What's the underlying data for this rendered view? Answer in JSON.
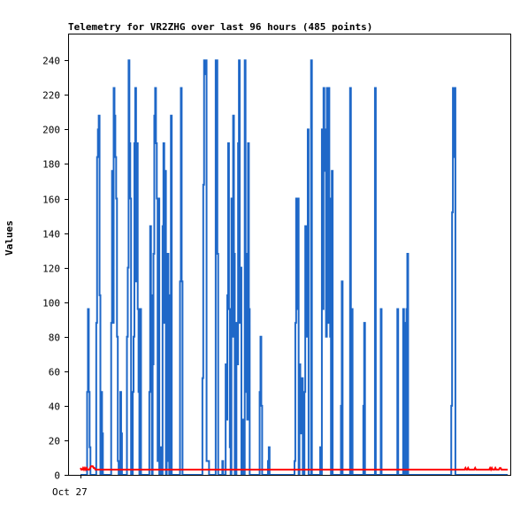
{
  "chart_data": {
    "type": "line",
    "title": "Telemetry for VR2ZHG over last 96 hours (485 points)",
    "ylabel": "Values",
    "xlabel": "",
    "x_tick_labels": [
      "Oct 27"
    ],
    "y_ticks": [
      0,
      20,
      40,
      60,
      80,
      100,
      120,
      140,
      160,
      180,
      200,
      220,
      240
    ],
    "ylim": [
      0,
      255
    ],
    "grid": false,
    "legend": "none",
    "colors": {
      "primary": "#1f68c8",
      "secondary": "#ff0000",
      "axis": "#000000"
    },
    "series": [
      {
        "color": "#1f68c8",
        "style": "step",
        "values": [
          0,
          0,
          0,
          0,
          0,
          0,
          0,
          0,
          48,
          96,
          48,
          16,
          0,
          0,
          0,
          0,
          0,
          0,
          0,
          88,
          184,
          200,
          208,
          104,
          0,
          48,
          24,
          0,
          0,
          0,
          0,
          0,
          0,
          0,
          0,
          0,
          0,
          88,
          176,
          88,
          224,
          208,
          184,
          160,
          80,
          8,
          0,
          0,
          48,
          24,
          0,
          0,
          0,
          0,
          0,
          0,
          80,
          120,
          240,
          192,
          160,
          0,
          0,
          48,
          80,
          192,
          224,
          112,
          192,
          96,
          48,
          0,
          96,
          0,
          0,
          0,
          0,
          0,
          0,
          0,
          0,
          0,
          0,
          48,
          144,
          104,
          0,
          64,
          128,
          208,
          224,
          192,
          160,
          8,
          160,
          0,
          16,
          0,
          0,
          144,
          192,
          88,
          176,
          0,
          8,
          128,
          64,
          0,
          104,
          208,
          0,
          0,
          0,
          0,
          0,
          0,
          0,
          0,
          0,
          0,
          112,
          224,
          112,
          0,
          0,
          0,
          0,
          0,
          0,
          0,
          0,
          0,
          0,
          0,
          0,
          0,
          0,
          0,
          0,
          0,
          0,
          0,
          0,
          0,
          0,
          0,
          0,
          56,
          168,
          240,
          232,
          240,
          8,
          8,
          8,
          0,
          0,
          0,
          0,
          0,
          0,
          0,
          0,
          240,
          240,
          128,
          0,
          0,
          0,
          0,
          0,
          8,
          0,
          0,
          0,
          64,
          32,
          104,
          192,
          96,
          16,
          0,
          160,
          80,
          208,
          128,
          0,
          0,
          88,
          64,
          192,
          240,
          88,
          120,
          0,
          32,
          16,
          0,
          240,
          48,
          128,
          32,
          192,
          96,
          0,
          0,
          0,
          0,
          0,
          0,
          0,
          0,
          0,
          0,
          0,
          0,
          48,
          80,
          40,
          0,
          0,
          0,
          0,
          0,
          0,
          0,
          8,
          16,
          0,
          0,
          0,
          0,
          0,
          0,
          0,
          0,
          0,
          0,
          0,
          0,
          0,
          0,
          0,
          0,
          0,
          0,
          0,
          0,
          0,
          0,
          0,
          0,
          0,
          0,
          0,
          0,
          0,
          0,
          8,
          88,
          160,
          96,
          160,
          0,
          64,
          24,
          32,
          56,
          0,
          0,
          48,
          144,
          128,
          80,
          200,
          0,
          0,
          0,
          240,
          0,
          0,
          0,
          0,
          0,
          0,
          0,
          0,
          0,
          0,
          16,
          0,
          200,
          96,
          224,
          200,
          176,
          80,
          224,
          88,
          224,
          160,
          80,
          0,
          176,
          0,
          0,
          0,
          0,
          0,
          0,
          0,
          0,
          0,
          0,
          40,
          112,
          0,
          0,
          0,
          0,
          0,
          0,
          0,
          0,
          0,
          224,
          0,
          96,
          0,
          0,
          0,
          0,
          0,
          0,
          0,
          0,
          0,
          0,
          0,
          0,
          0,
          40,
          88,
          0,
          0,
          0,
          0,
          0,
          0,
          0,
          0,
          0,
          0,
          0,
          0,
          224,
          0,
          0,
          0,
          0,
          0,
          0,
          96,
          0,
          0,
          0,
          0,
          0,
          0,
          0,
          0,
          0,
          0,
          0,
          0,
          0,
          0,
          0,
          0,
          0,
          0,
          0,
          96,
          0,
          0,
          0,
          0,
          0,
          0,
          96,
          88,
          0,
          0,
          96,
          128,
          0,
          0,
          0,
          0,
          0,
          0,
          0,
          0,
          0,
          0,
          0,
          0,
          0,
          0,
          0,
          0,
          0,
          0,
          0,
          0,
          0,
          0,
          0,
          0,
          0,
          0,
          0,
          0,
          0,
          0,
          0,
          0,
          0,
          0,
          0,
          0,
          0,
          0,
          0,
          0,
          0,
          0,
          0,
          0,
          0,
          0,
          0,
          0,
          0,
          0,
          0,
          0,
          40,
          152,
          224,
          184,
          224,
          0,
          0,
          0,
          0,
          0,
          0,
          0,
          0,
          0,
          0,
          0,
          0,
          0,
          0,
          0,
          0,
          0,
          0,
          0,
          0,
          0,
          0,
          0,
          0,
          0,
          0,
          0,
          0,
          0,
          0,
          0,
          0,
          0,
          0,
          0,
          0,
          0,
          0,
          0,
          0,
          0,
          0,
          0,
          0,
          0,
          0,
          0,
          0,
          0,
          0,
          0,
          0,
          0,
          0,
          0,
          0,
          0,
          0,
          0,
          0,
          0,
          0,
          0,
          0
        ]
      },
      {
        "color": "#ff0000",
        "style": "line",
        "values": [
          4,
          3,
          3,
          4,
          3,
          4,
          3,
          4,
          3,
          3,
          3,
          4,
          5,
          5,
          5,
          4,
          4,
          3,
          3,
          3,
          3,
          3,
          3,
          3,
          3,
          3,
          3,
          3,
          3,
          3,
          3,
          3,
          3,
          3,
          3,
          3,
          3,
          3,
          3,
          3,
          3,
          3,
          3,
          3,
          3,
          3,
          3,
          3,
          3,
          3,
          3,
          3,
          3,
          3,
          3,
          3,
          3,
          3,
          3,
          3,
          3,
          3,
          3,
          3,
          3,
          3,
          3,
          3,
          3,
          3,
          3,
          3,
          3,
          3,
          3,
          3,
          3,
          3,
          3,
          3,
          3,
          3,
          3,
          3,
          3,
          3,
          3,
          3,
          3,
          3,
          3,
          3,
          3,
          3,
          3,
          3,
          3,
          3,
          3,
          3,
          3,
          3,
          3,
          3,
          3,
          3,
          3,
          3,
          3,
          3,
          3,
          3,
          3,
          3,
          3,
          3,
          3,
          3,
          3,
          3,
          3,
          3,
          3,
          3,
          3,
          3,
          3,
          3,
          3,
          3,
          3,
          3,
          3,
          3,
          3,
          3,
          3,
          3,
          3,
          3,
          3,
          3,
          3,
          3,
          3,
          3,
          3,
          3,
          3,
          3,
          3,
          3,
          3,
          3,
          3,
          3,
          3,
          3,
          3,
          3,
          3,
          3,
          3,
          3,
          3,
          3,
          3,
          3,
          3,
          3,
          3,
          3,
          3,
          3,
          3,
          3,
          3,
          3,
          3,
          3,
          3,
          3,
          3,
          3,
          3,
          3,
          3,
          3,
          3,
          3,
          3,
          3,
          3,
          3,
          3,
          3,
          3,
          3,
          3,
          3,
          3,
          3,
          3,
          3,
          3,
          3,
          3,
          3,
          3,
          3,
          3,
          3,
          3,
          3,
          3,
          3,
          3,
          3,
          3,
          3,
          3,
          3,
          3,
          3,
          3,
          3,
          3,
          3,
          3,
          3,
          3,
          3,
          3,
          3,
          3,
          3,
          3,
          3,
          3,
          3,
          3,
          3,
          3,
          3,
          3,
          3,
          3,
          3,
          3,
          3,
          3,
          3,
          3,
          3,
          3,
          3,
          3,
          3,
          3,
          3,
          3,
          3,
          3,
          3,
          3,
          3,
          3,
          3,
          3,
          3,
          3,
          3,
          3,
          3,
          3,
          3,
          3,
          3,
          3,
          3,
          3,
          3,
          3,
          3,
          3,
          3,
          3,
          3,
          3,
          3,
          3,
          3,
          3,
          3,
          3,
          3,
          3,
          3,
          3,
          3,
          3,
          3,
          3,
          3,
          3,
          3,
          3,
          3,
          3,
          3,
          3,
          3,
          3,
          3,
          3,
          3,
          3,
          3,
          3,
          3,
          3,
          3,
          3,
          3,
          3,
          3,
          3,
          3,
          3,
          3,
          3,
          3,
          3,
          3,
          3,
          3,
          3,
          3,
          3,
          3,
          3,
          3,
          3,
          3,
          3,
          3,
          3,
          3,
          3,
          3,
          3,
          3,
          3,
          3,
          3,
          3,
          3,
          3,
          3,
          3,
          3,
          3,
          3,
          3,
          3,
          3,
          3,
          3,
          3,
          3,
          3,
          3,
          3,
          3,
          3,
          3,
          3,
          3,
          3,
          3,
          3,
          3,
          3,
          3,
          3,
          3,
          3,
          3,
          3,
          3,
          3,
          3,
          3,
          3,
          3,
          3,
          3,
          3,
          3,
          3,
          3,
          3,
          3,
          3,
          3,
          3,
          3,
          3,
          3,
          3,
          3,
          3,
          3,
          3,
          3,
          3,
          3,
          3,
          3,
          3,
          3,
          3,
          3,
          3,
          3,
          3,
          3,
          3,
          3,
          3,
          3,
          3,
          3,
          3,
          3,
          3,
          3,
          3,
          4,
          3,
          3,
          4,
          3,
          3,
          3,
          3,
          3,
          3,
          3,
          4,
          3,
          3,
          3,
          3,
          3,
          3,
          3,
          3,
          3,
          3,
          3,
          3,
          3,
          3,
          3,
          3,
          4,
          3,
          4,
          3,
          3,
          3,
          4,
          3,
          3,
          3,
          3,
          4,
          4,
          3,
          3,
          3,
          3,
          3,
          3,
          3,
          3
        ]
      }
    ]
  }
}
